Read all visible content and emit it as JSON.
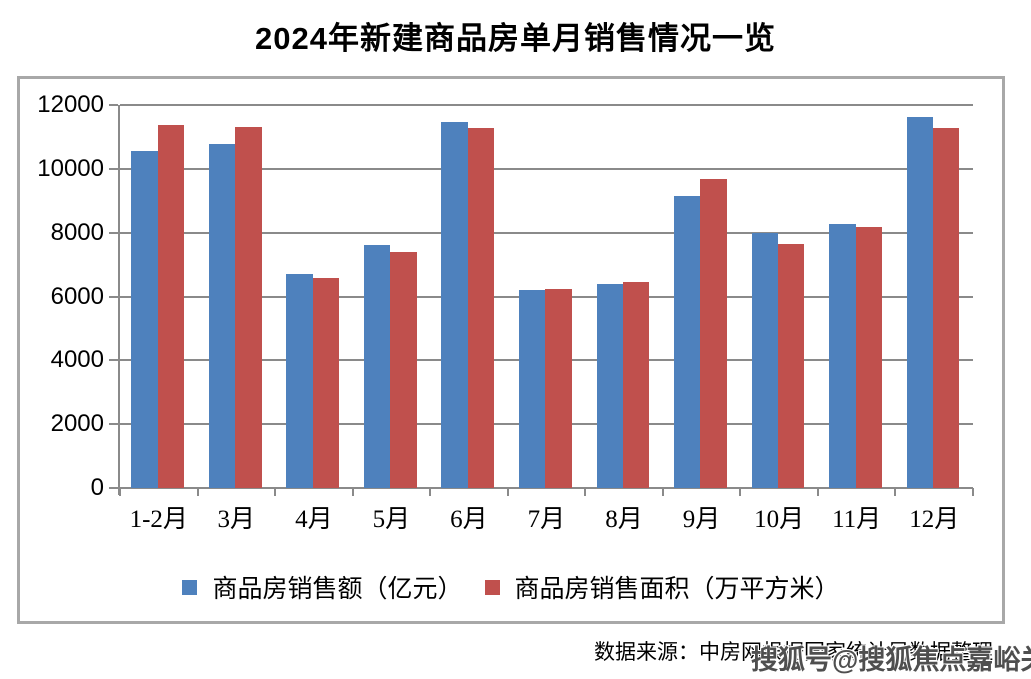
{
  "title": "2024年新建商品房单月销售情况一览",
  "footer": {
    "source_text": "数据来源：中房网根据国家统计局数据整理",
    "watermark": "搜狐号@搜狐焦点嘉峪关站"
  },
  "colors": {
    "series1_blue": "#4E81BD",
    "series2_red": "#C0504D",
    "gridline": "#8a8a8a",
    "frame_border": "#a8a8a8",
    "text": "#000000"
  },
  "chart_data": {
    "type": "bar",
    "title": "2024年新建商品房单月销售情况一览",
    "categories": [
      "1-2月",
      "3月",
      "4月",
      "5月",
      "6月",
      "7月",
      "8月",
      "9月",
      "10月",
      "11月",
      "12月"
    ],
    "series": [
      {
        "name": "商品房销售额（亿元）",
        "color": "#4E81BD",
        "values": [
          10566,
          10789,
          6712,
          7598,
          11468,
          6197,
          6393,
          9157,
          7975,
          8270,
          11625
        ]
      },
      {
        "name": "商品房销售面积（万平方米）",
        "color": "#C0504D",
        "values": [
          11369,
          11299,
          6584,
          7390,
          11274,
          6233,
          6453,
          9682,
          7646,
          8188,
          11267
        ]
      }
    ],
    "xlabel": "",
    "ylabel": "",
    "ylim": [
      0,
      12000
    ],
    "ytick_step": 2000,
    "grid": true,
    "legend_position": "bottom"
  }
}
